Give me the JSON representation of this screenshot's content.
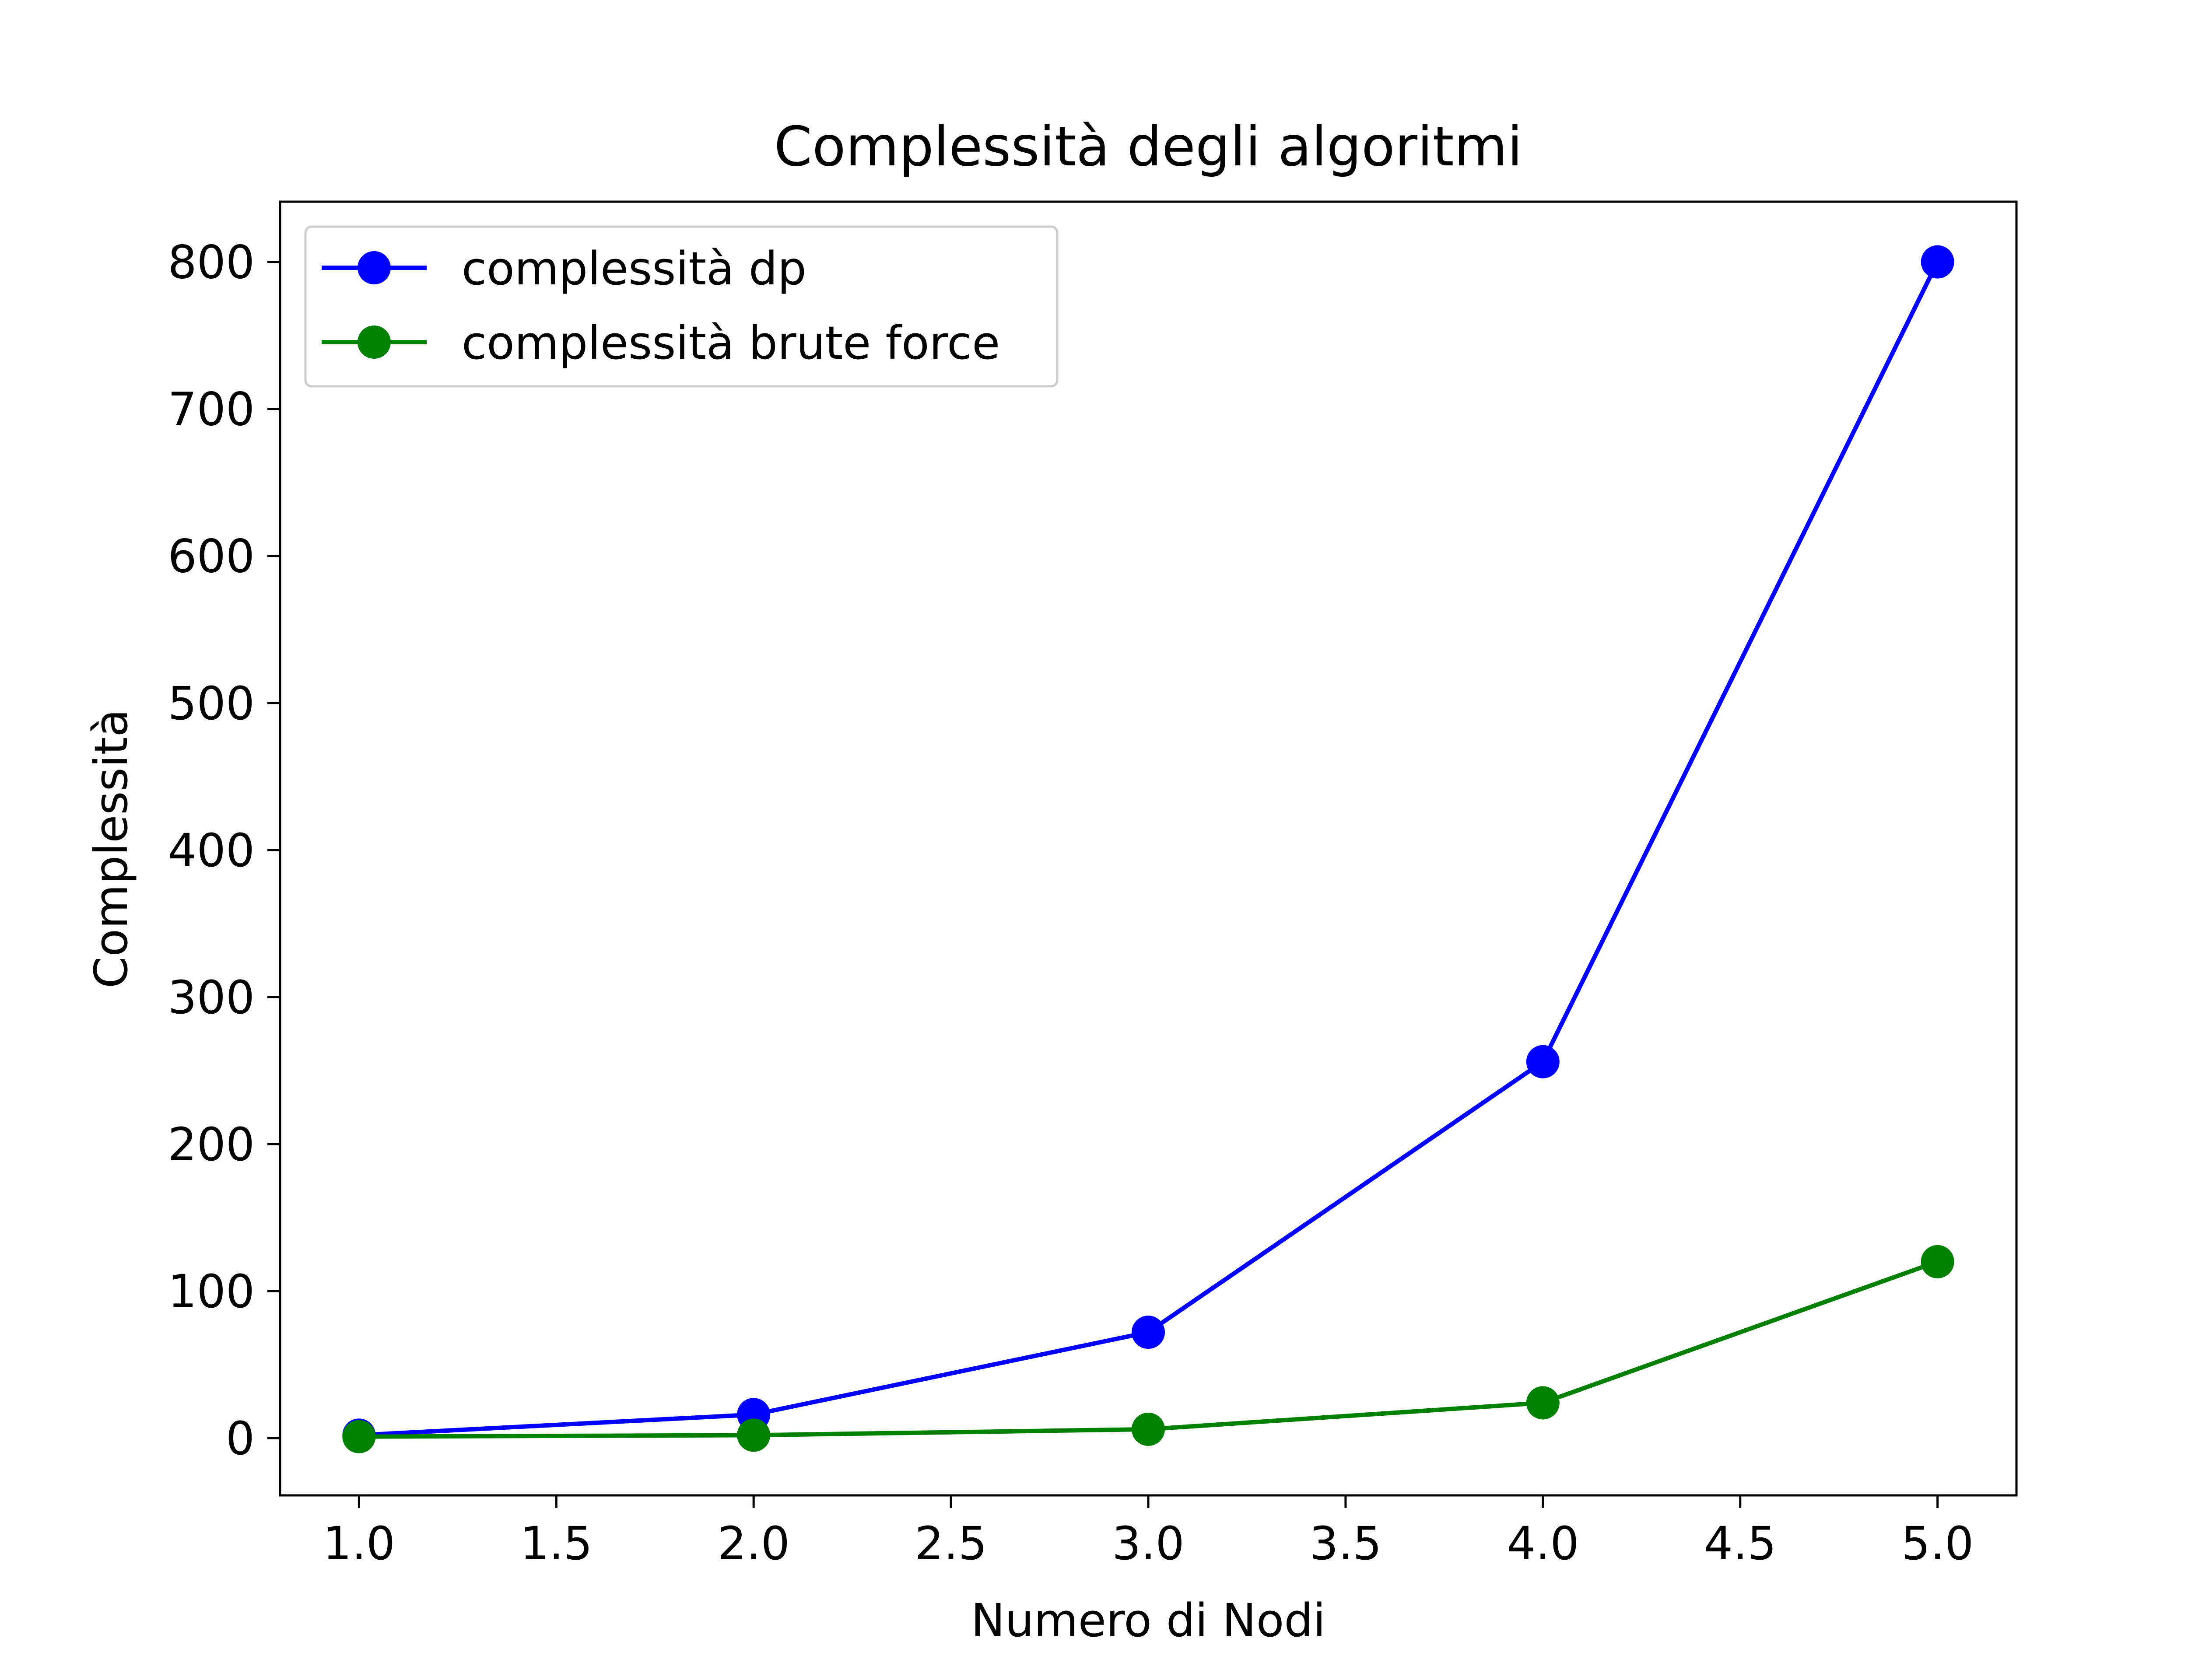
{
  "chart_data": {
    "type": "line",
    "title": "Complessità degli algoritmi",
    "xlabel": "Numero di Nodi",
    "ylabel": "Complessità",
    "x": [
      1,
      2,
      3,
      4,
      5
    ],
    "xlim": [
      0.8,
      5.2
    ],
    "ylim": [
      -38.95,
      840.95
    ],
    "xticks": [
      1.0,
      1.5,
      2.0,
      2.5,
      3.0,
      3.5,
      4.0,
      4.5,
      5.0
    ],
    "xtick_labels": [
      "1.0",
      "1.5",
      "2.0",
      "2.5",
      "3.0",
      "3.5",
      "4.0",
      "4.5",
      "5.0"
    ],
    "yticks": [
      0,
      100,
      200,
      300,
      400,
      500,
      600,
      700,
      800
    ],
    "ytick_labels": [
      "0",
      "100",
      "200",
      "300",
      "400",
      "500",
      "600",
      "700",
      "800"
    ],
    "grid": false,
    "legend_position": "top-left",
    "series": [
      {
        "name": "complessità dp",
        "color": "#0000ff",
        "marker": "circle",
        "values": [
          2,
          16,
          72,
          256,
          800
        ]
      },
      {
        "name": "complessità brute force",
        "color": "#008000",
        "marker": "circle",
        "values": [
          1,
          2,
          6,
          24,
          120
        ]
      }
    ]
  }
}
